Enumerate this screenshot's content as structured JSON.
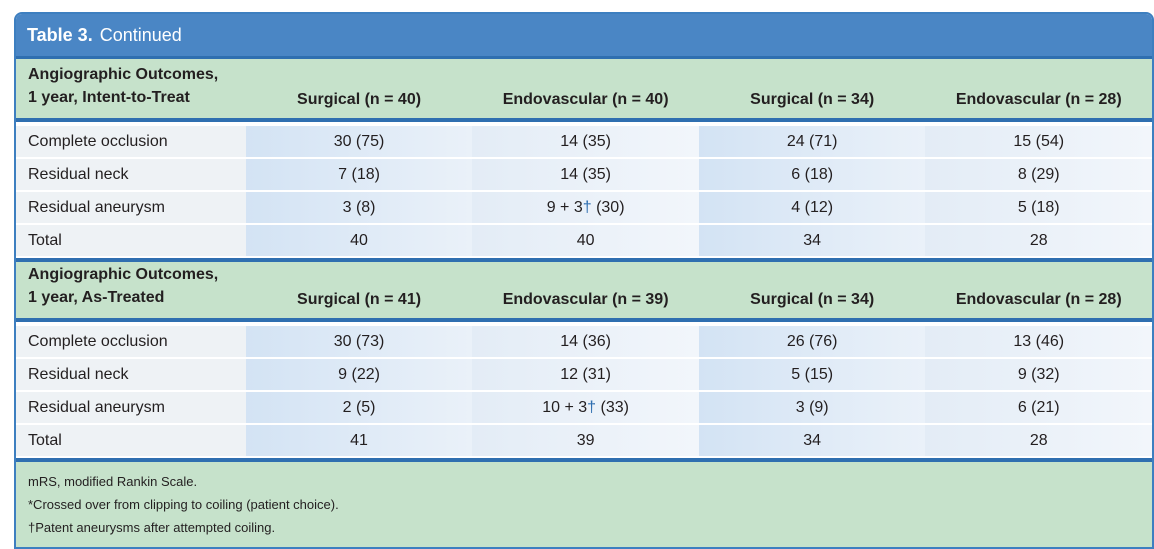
{
  "title": {
    "label": "Table 3.",
    "text": "Continued"
  },
  "sections": [
    {
      "label_line1": "Angiographic Outcomes,",
      "label_line2": "1 year, Intent-to-Treat",
      "columns": [
        "Surgical (n = 40)",
        "Endovascular (n = 40)",
        "Surgical (n = 34)",
        "Endovascular (n = 28)"
      ],
      "rows": [
        {
          "label": "Complete occlusion",
          "values": [
            "30 (75)",
            "14 (35)",
            "24 (71)",
            "15 (54)"
          ]
        },
        {
          "label": "Residual neck",
          "values": [
            "7 (18)",
            "14 (35)",
            "6 (18)",
            "8 (29)"
          ]
        },
        {
          "label": "Residual aneurysm",
          "values": [
            "3 (8)",
            "9 + 3",
            "4 (12)",
            "5 (18)"
          ],
          "endo_dagger_suffix": " (30)"
        },
        {
          "label": "Total",
          "values": [
            "40",
            "40",
            "34",
            "28"
          ]
        }
      ]
    },
    {
      "label_line1": "Angiographic Outcomes,",
      "label_line2": "1 year, As-Treated",
      "columns": [
        "Surgical (n = 41)",
        "Endovascular (n = 39)",
        "Surgical (n = 34)",
        "Endovascular (n = 28)"
      ],
      "rows": [
        {
          "label": "Complete occlusion",
          "values": [
            "30 (73)",
            "14 (36)",
            "26 (76)",
            "13 (46)"
          ]
        },
        {
          "label": "Residual neck",
          "values": [
            "9 (22)",
            "12 (31)",
            "5 (15)",
            "9 (32)"
          ]
        },
        {
          "label": "Residual aneurysm",
          "values": [
            "2 (5)",
            "10 + 3",
            "3 (9)",
            "6 (21)"
          ],
          "endo_dagger_suffix": " (33)"
        },
        {
          "label": "Total",
          "values": [
            "41",
            "39",
            "34",
            "28"
          ]
        }
      ]
    }
  ],
  "dagger": "†",
  "footnotes": [
    "mRS, modified Rankin Scale.",
    "*Crossed over from clipping to coiling (patient choice).",
    "†Patent aneurysms after attempted coiling."
  ],
  "colors": {
    "header_blue": "#4a86c5",
    "rule_blue": "#2f6fb0",
    "section_green": "#c6e2cb"
  }
}
